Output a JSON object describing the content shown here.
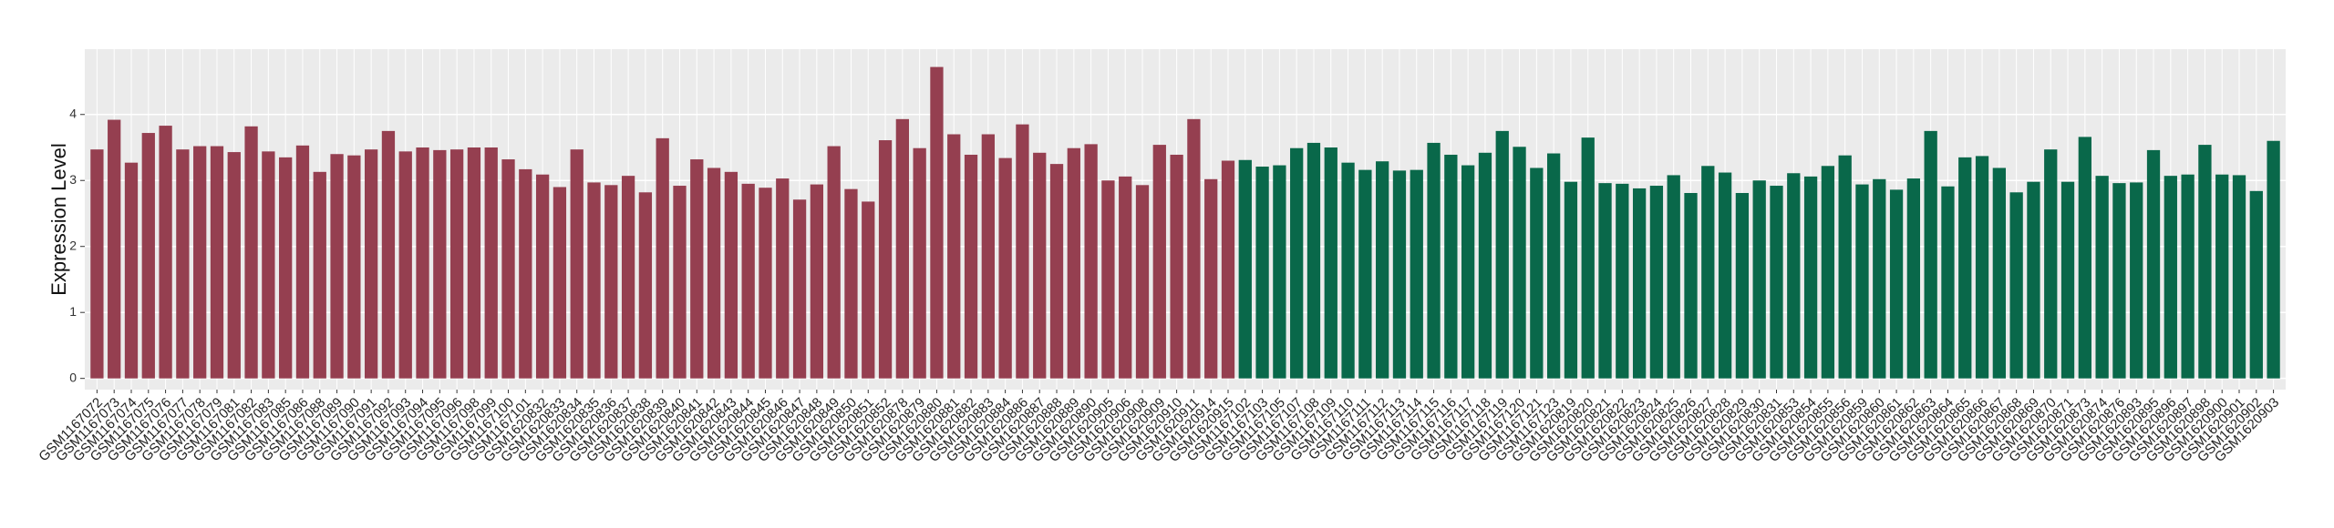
{
  "chart_data": {
    "type": "bar",
    "y_label": "Expression Level",
    "ylim": [
      -0.17,
      4.99
    ],
    "yticks": [
      0,
      1,
      2,
      3,
      4
    ],
    "grid": true,
    "groups": [
      {
        "color": "#953f50",
        "categories": [
          "GSM1167072",
          "GSM1167073",
          "GSM1167074",
          "GSM1167075",
          "GSM1167076",
          "GSM1167077",
          "GSM1167078",
          "GSM1167079",
          "GSM1167081",
          "GSM1167082",
          "GSM1167083",
          "GSM1167085",
          "GSM1167086",
          "GSM1167088",
          "GSM1167089",
          "GSM1167090",
          "GSM1167091",
          "GSM1167092",
          "GSM1167093",
          "GSM1167094",
          "GSM1167095",
          "GSM1167096",
          "GSM1167098",
          "GSM1167099",
          "GSM1167100",
          "GSM1167101",
          "GSM1620832",
          "GSM1620833",
          "GSM1620834",
          "GSM1620835",
          "GSM1620836",
          "GSM1620837",
          "GSM1620838",
          "GSM1620839",
          "GSM1620840",
          "GSM1620841",
          "GSM1620842",
          "GSM1620843",
          "GSM1620844",
          "GSM1620845",
          "GSM1620846",
          "GSM1620847",
          "GSM1620848",
          "GSM1620849",
          "GSM1620850",
          "GSM1620851",
          "GSM1620852",
          "GSM1620878",
          "GSM1620879",
          "GSM1620880",
          "GSM1620881",
          "GSM1620882",
          "GSM1620883",
          "GSM1620884",
          "GSM1620886",
          "GSM1620887",
          "GSM1620888",
          "GSM1620889",
          "GSM1620890",
          "GSM1620905",
          "GSM1620906",
          "GSM1620908",
          "GSM1620909",
          "GSM1620910",
          "GSM1620911",
          "GSM1620914",
          "GSM1620915"
        ],
        "values": [
          3.47,
          3.92,
          3.27,
          3.72,
          3.83,
          3.47,
          3.52,
          3.52,
          3.43,
          3.82,
          3.44,
          3.35,
          3.53,
          3.13,
          3.4,
          3.38,
          3.47,
          3.75,
          3.44,
          3.5,
          3.46,
          3.47,
          3.5,
          3.5,
          3.32,
          3.17,
          3.09,
          2.9,
          3.47,
          2.97,
          2.93,
          3.07,
          2.82,
          3.64,
          2.92,
          3.32,
          3.19,
          3.13,
          2.95,
          2.89,
          3.03,
          2.71,
          2.94,
          3.52,
          2.87,
          2.68,
          3.61,
          3.93,
          3.49,
          4.72,
          3.7,
          3.39,
          3.7,
          3.34,
          3.85,
          3.42,
          3.25,
          3.49,
          3.55,
          3.0,
          3.06,
          2.93,
          3.54,
          3.39,
          3.93,
          3.02,
          3.3
        ]
      },
      {
        "color": "#09684a",
        "categories": [
          "GSM1167102",
          "GSM1167103",
          "GSM1167105",
          "GSM1167107",
          "GSM1167108",
          "GSM1167109",
          "GSM1167110",
          "GSM1167111",
          "GSM1167112",
          "GSM1167113",
          "GSM1167114",
          "GSM1167115",
          "GSM1167116",
          "GSM1167117",
          "GSM1167118",
          "GSM1167119",
          "GSM1167120",
          "GSM1167121",
          "GSM1167123",
          "GSM1620819",
          "GSM1620820",
          "GSM1620821",
          "GSM1620822",
          "GSM1620823",
          "GSM1620824",
          "GSM1620825",
          "GSM1620826",
          "GSM1620827",
          "GSM1620828",
          "GSM1620829",
          "GSM1620830",
          "GSM1620831",
          "GSM1620853",
          "GSM1620854",
          "GSM1620855",
          "GSM1620856",
          "GSM1620859",
          "GSM1620860",
          "GSM1620861",
          "GSM1620862",
          "GSM1620863",
          "GSM1620864",
          "GSM1620865",
          "GSM1620866",
          "GSM1620867",
          "GSM1620868",
          "GSM1620869",
          "GSM1620870",
          "GSM1620871",
          "GSM1620873",
          "GSM1620874",
          "GSM1620876",
          "GSM1620893",
          "GSM1620895",
          "GSM1620896",
          "GSM1620897",
          "GSM1620898",
          "GSM1620900",
          "GSM1620901",
          "GSM1620902",
          "GSM1620903"
        ],
        "values": [
          3.31,
          3.21,
          3.23,
          3.49,
          3.57,
          3.5,
          3.27,
          3.16,
          3.29,
          3.15,
          3.16,
          3.57,
          3.39,
          3.23,
          3.42,
          3.75,
          3.51,
          3.19,
          3.41,
          2.98,
          3.65,
          2.96,
          2.95,
          2.88,
          2.92,
          3.08,
          2.81,
          3.22,
          3.12,
          2.81,
          3.0,
          2.92,
          3.11,
          3.06,
          3.22,
          3.38,
          2.94,
          3.02,
          2.86,
          3.03,
          3.75,
          2.91,
          3.35,
          3.37,
          3.19,
          2.82,
          2.98,
          3.47,
          2.98,
          3.66,
          3.07,
          2.96,
          2.97,
          3.46,
          3.07,
          3.09,
          3.54,
          3.09,
          3.08,
          2.84,
          3.6
        ]
      }
    ]
  }
}
